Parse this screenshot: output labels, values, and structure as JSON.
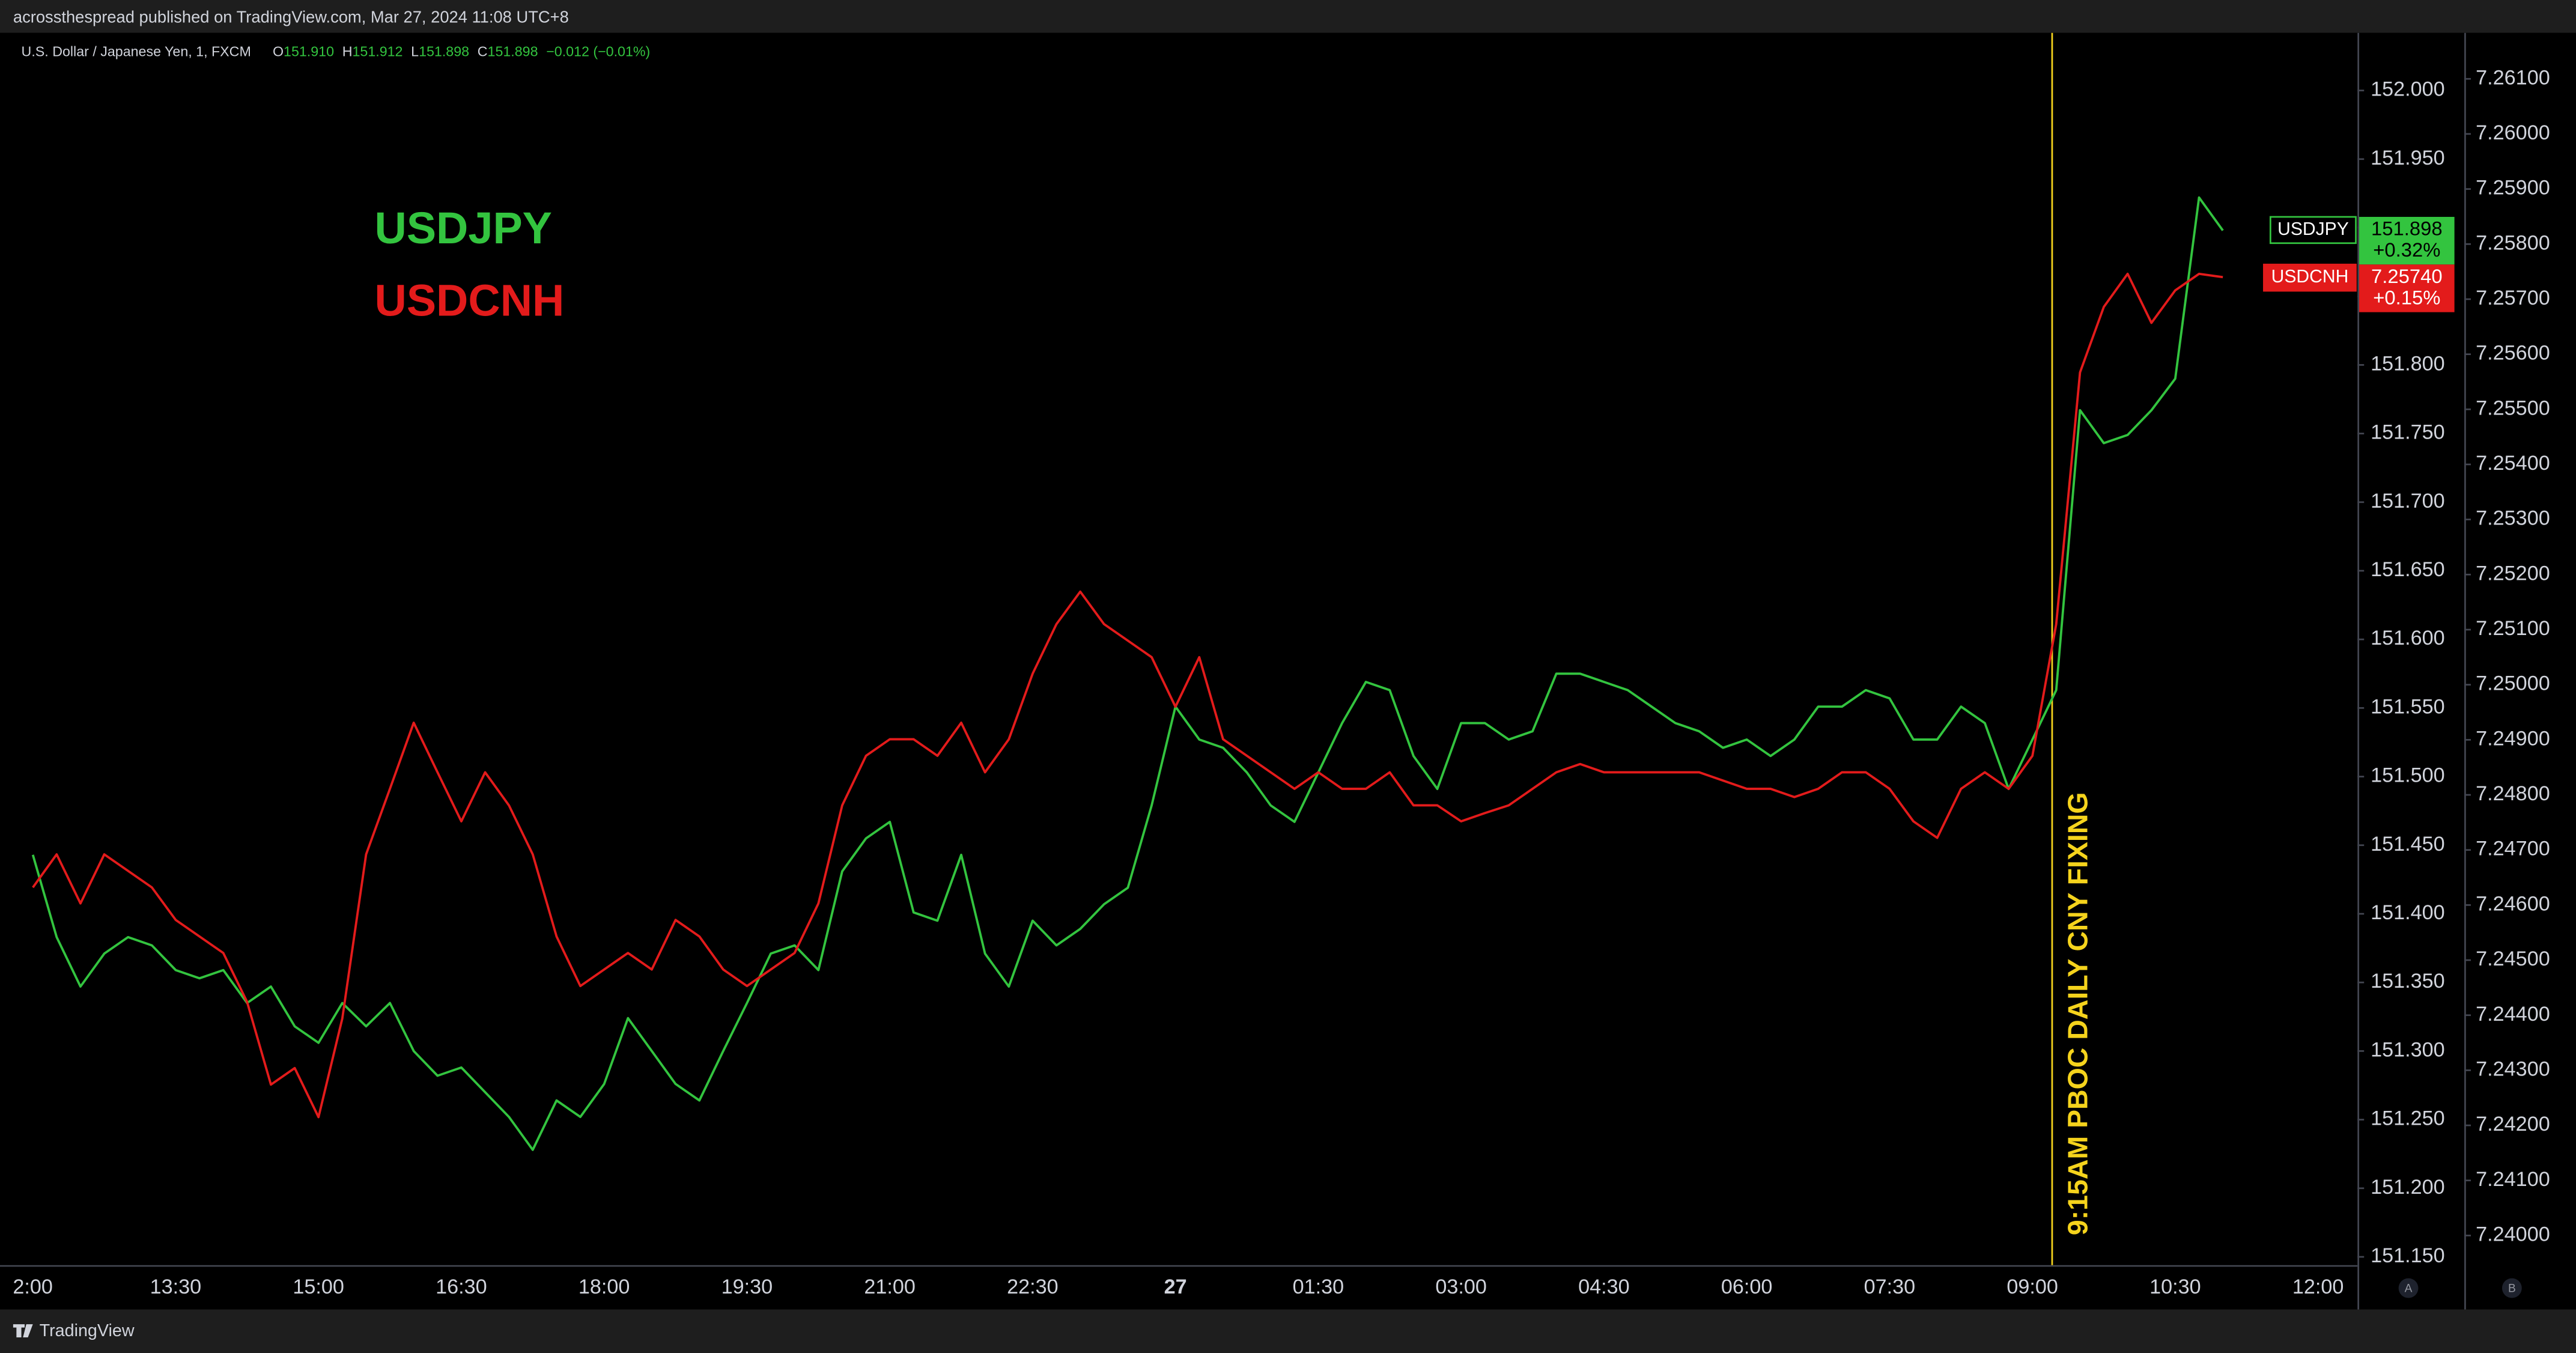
{
  "header": {
    "publisher": "acrossthespread published on TradingView.com, Mar 27, 2024 11:08 UTC+8"
  },
  "footer": {
    "brand": "TradingView"
  },
  "chart_data": {
    "type": "line",
    "title": "U.S. Dollar / Japanese Yen, 1, FXCM",
    "ohlc": [
      [
        "O",
        "151.910"
      ],
      [
        "H",
        "151.912"
      ],
      [
        "L",
        "151.898"
      ],
      [
        "C",
        "151.898"
      ]
    ],
    "change": "−0.012 (−0.01%)",
    "annotation": "9:15AM PBOC DAILY CNY FIXING",
    "annotation_color": "#f5d31c",
    "scale_buttons": [
      "A",
      "B"
    ],
    "categories": [
      "2:00",
      null,
      null,
      null,
      null,
      null,
      "13:30",
      null,
      null,
      null,
      null,
      null,
      "15:00",
      null,
      null,
      null,
      null,
      null,
      "16:30",
      null,
      null,
      null,
      null,
      null,
      "18:00",
      null,
      null,
      null,
      null,
      null,
      "19:30",
      null,
      null,
      null,
      null,
      null,
      "21:00",
      null,
      null,
      null,
      null,
      null,
      "22:30",
      null,
      null,
      null,
      null,
      null,
      "27",
      null,
      null,
      null,
      null,
      null,
      "01:30",
      null,
      null,
      null,
      null,
      null,
      "03:00",
      null,
      null,
      null,
      null,
      null,
      "04:30",
      null,
      null,
      null,
      null,
      null,
      "06:00",
      null,
      null,
      null,
      null,
      null,
      "07:30",
      null,
      null,
      null,
      null,
      null,
      "09:00",
      null,
      null,
      null,
      null,
      null,
      "10:30",
      null,
      null,
      null,
      null,
      null,
      "12:00"
    ],
    "series": [
      {
        "name": "USDJPY",
        "color": "#33c43f",
        "axis": "y",
        "last_label": "151.898",
        "change_label": "+0.32%",
        "values": [
          151.443,
          151.383,
          151.347,
          151.371,
          151.383,
          151.377,
          151.359,
          151.353,
          151.359,
          151.335,
          151.347,
          151.318,
          151.306,
          151.335,
          151.318,
          151.335,
          151.3,
          151.282,
          151.288,
          151.27,
          151.252,
          151.228,
          151.264,
          151.252,
          151.276,
          151.324,
          151.3,
          151.276,
          151.264,
          151.3,
          151.335,
          151.371,
          151.377,
          151.359,
          151.431,
          151.455,
          151.467,
          151.401,
          151.395,
          151.443,
          151.371,
          151.347,
          151.395,
          151.377,
          151.389,
          151.407,
          151.419,
          151.479,
          151.551,
          151.527,
          151.521,
          151.503,
          151.479,
          151.467,
          151.503,
          151.539,
          151.569,
          151.563,
          151.515,
          151.491,
          151.539,
          151.539,
          151.527,
          151.533,
          151.575,
          151.575,
          151.569,
          151.563,
          151.551,
          151.539,
          151.533,
          151.521,
          151.527,
          151.515,
          151.527,
          151.551,
          151.551,
          151.563,
          151.557,
          151.527,
          151.527,
          151.551,
          151.539,
          151.491,
          151.527,
          151.563,
          151.767,
          151.743,
          151.749,
          151.767,
          151.79,
          151.922,
          151.898,
          null,
          null,
          null,
          null
        ]
      },
      {
        "name": "USDCNH",
        "color": "#e31b1b",
        "axis": "y2",
        "last_label": "7.25740",
        "change_label": "+0.15%",
        "values": [
          7.24632,
          7.24692,
          7.24603,
          7.24692,
          7.24662,
          7.24632,
          7.24573,
          7.24543,
          7.24513,
          7.24424,
          7.24274,
          7.24304,
          7.24215,
          7.24394,
          7.24692,
          7.24811,
          7.24931,
          7.24841,
          7.24752,
          7.24841,
          7.24781,
          7.24692,
          7.24543,
          7.24453,
          7.24483,
          7.24513,
          7.24483,
          7.24573,
          7.24543,
          7.24483,
          7.24453,
          7.24483,
          7.24513,
          7.24603,
          7.24781,
          7.24871,
          7.24901,
          7.24901,
          7.24871,
          7.24931,
          7.24841,
          7.24901,
          7.2502,
          7.2511,
          7.25169,
          7.2511,
          7.2508,
          7.2505,
          7.2496,
          7.2505,
          7.24901,
          7.24871,
          7.24841,
          7.24811,
          7.24841,
          7.24811,
          7.24811,
          7.24841,
          7.24781,
          7.24781,
          7.24752,
          7.24767,
          7.24781,
          7.24811,
          7.24841,
          7.24856,
          7.24841,
          7.24841,
          7.24841,
          7.24841,
          7.24841,
          7.24826,
          7.24811,
          7.24811,
          7.24796,
          7.24811,
          7.24841,
          7.24841,
          7.24811,
          7.24752,
          7.24722,
          7.24811,
          7.24841,
          7.24811,
          7.24871,
          7.2511,
          7.25567,
          7.25686,
          7.25746,
          7.25657,
          7.25716,
          7.25746,
          7.2574,
          null,
          null,
          null,
          null
        ]
      }
    ],
    "ylim": [
      151.144,
      152.042
    ],
    "yticks": [
      {
        "value": 151.15,
        "label": "151.150"
      },
      {
        "value": 151.2,
        "label": "151.200"
      },
      {
        "value": 151.25,
        "label": "151.250"
      },
      {
        "value": 151.3,
        "label": "151.300"
      },
      {
        "value": 151.35,
        "label": "151.350"
      },
      {
        "value": 151.4,
        "label": "151.400"
      },
      {
        "value": 151.45,
        "label": "151.450"
      },
      {
        "value": 151.5,
        "label": "151.500"
      },
      {
        "value": 151.55,
        "label": "151.550"
      },
      {
        "value": 151.6,
        "label": "151.600"
      },
      {
        "value": 151.65,
        "label": "151.650"
      },
      {
        "value": 151.7,
        "label": "151.700"
      },
      {
        "value": 151.75,
        "label": "151.750"
      },
      {
        "value": 151.8,
        "label": "151.800"
      },
      {
        "value": 151.85,
        "label": "151.850"
      },
      {
        "value": 151.9,
        "label": "151.900"
      },
      {
        "value": 151.95,
        "label": "151.950"
      },
      {
        "value": 152,
        "label": "152.000"
      }
    ],
    "y2lim": [
      7.239463,
      7.261835
    ],
    "y2ticks": [
      {
        "value": 7.24,
        "label": "7.24000"
      },
      {
        "value": 7.241,
        "label": "7.24100"
      },
      {
        "value": 7.242,
        "label": "7.24200"
      },
      {
        "value": 7.243,
        "label": "7.24300"
      },
      {
        "value": 7.244,
        "label": "7.24400"
      },
      {
        "value": 7.245,
        "label": "7.24500"
      },
      {
        "value": 7.246,
        "label": "7.24600"
      },
      {
        "value": 7.247,
        "label": "7.24700"
      },
      {
        "value": 7.248,
        "label": "7.24800"
      },
      {
        "value": 7.249,
        "label": "7.24900"
      },
      {
        "value": 7.25,
        "label": "7.25000"
      },
      {
        "value": 7.251,
        "label": "7.25100"
      },
      {
        "value": 7.252,
        "label": "7.25200"
      },
      {
        "value": 7.253,
        "label": "7.25300"
      },
      {
        "value": 7.254,
        "label": "7.25400"
      },
      {
        "value": 7.255,
        "label": "7.25500"
      },
      {
        "value": 7.256,
        "label": "7.25600"
      },
      {
        "value": 7.257,
        "label": "7.25700"
      },
      {
        "value": 7.258,
        "label": "7.25800"
      },
      {
        "value": 7.259,
        "label": "7.25900"
      },
      {
        "value": 7.26,
        "label": "7.26000"
      },
      {
        "value": 7.261,
        "label": "7.26100"
      }
    ],
    "grid": false
  }
}
